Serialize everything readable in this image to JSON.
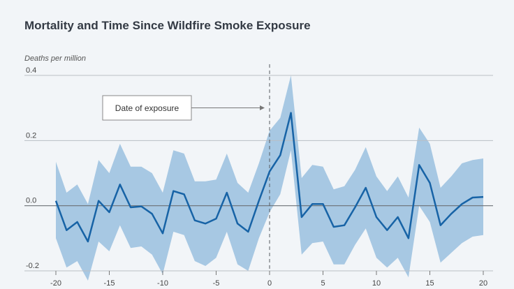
{
  "title": "Mortality and Time Since Wildfire Smoke Exposure",
  "chart_data": {
    "type": "line",
    "title": "Mortality and Time Since Wildfire Smoke Exposure",
    "ylabel": "Deaths per million",
    "xlabel": "",
    "xlim": [
      -20,
      20
    ],
    "ylim": [
      -0.2,
      0.4
    ],
    "x_ticks": [
      -20,
      -15,
      -10,
      -5,
      0,
      5,
      10,
      15,
      20
    ],
    "y_ticks": [
      -0.2,
      0.0,
      0.2,
      0.4
    ],
    "y_tick_labels": [
      "-0.2",
      "0.0",
      "0.2",
      "0.4"
    ],
    "grid": "horizontal",
    "annotation": {
      "text": "Date of exposure",
      "x": 0
    },
    "x": [
      -20,
      -19,
      -18,
      -17,
      -16,
      -15,
      -14,
      -13,
      -12,
      -11,
      -10,
      -9,
      -8,
      -7,
      -6,
      -5,
      -4,
      -3,
      -2,
      -1,
      0,
      1,
      2,
      3,
      4,
      5,
      6,
      7,
      8,
      9,
      10,
      11,
      12,
      13,
      14,
      15,
      16,
      17,
      18,
      19,
      20
    ],
    "series": [
      {
        "values": [
          0.015,
          -0.075,
          -0.05,
          -0.11,
          0.015,
          -0.02,
          0.065,
          -0.005,
          -0.002,
          -0.025,
          -0.085,
          0.045,
          0.035,
          -0.045,
          -0.055,
          -0.04,
          0.04,
          -0.055,
          -0.08,
          0.015,
          0.105,
          0.155,
          0.285,
          -0.035,
          0.005,
          0.005,
          -0.065,
          -0.06,
          -0.005,
          0.055,
          -0.035,
          -0.075,
          -0.035,
          -0.1,
          0.125,
          0.07,
          -0.06,
          -0.025,
          0.005,
          0.025,
          0.027
        ],
        "lower": [
          -0.1,
          -0.19,
          -0.17,
          -0.23,
          -0.11,
          -0.14,
          -0.06,
          -0.13,
          -0.125,
          -0.15,
          -0.21,
          -0.08,
          -0.09,
          -0.17,
          -0.185,
          -0.16,
          -0.08,
          -0.18,
          -0.2,
          -0.1,
          -0.02,
          0.035,
          0.17,
          -0.15,
          -0.115,
          -0.11,
          -0.18,
          -0.18,
          -0.12,
          -0.07,
          -0.16,
          -0.19,
          -0.16,
          -0.22,
          0.0,
          -0.05,
          -0.175,
          -0.145,
          -0.115,
          -0.095,
          -0.09
        ],
        "upper": [
          0.135,
          0.04,
          0.065,
          0.005,
          0.14,
          0.1,
          0.19,
          0.12,
          0.12,
          0.1,
          0.04,
          0.17,
          0.16,
          0.075,
          0.075,
          0.08,
          0.16,
          0.07,
          0.04,
          0.13,
          0.23,
          0.27,
          0.4,
          0.085,
          0.125,
          0.12,
          0.05,
          0.06,
          0.11,
          0.18,
          0.09,
          0.045,
          0.09,
          0.025,
          0.24,
          0.19,
          0.055,
          0.09,
          0.13,
          0.14,
          0.145
        ]
      }
    ],
    "colors": {
      "line": "#1763a6",
      "band": "#a7c8e3",
      "grid": "#b9bec4",
      "zero": "#6b7075",
      "vline": "#555a60"
    }
  }
}
